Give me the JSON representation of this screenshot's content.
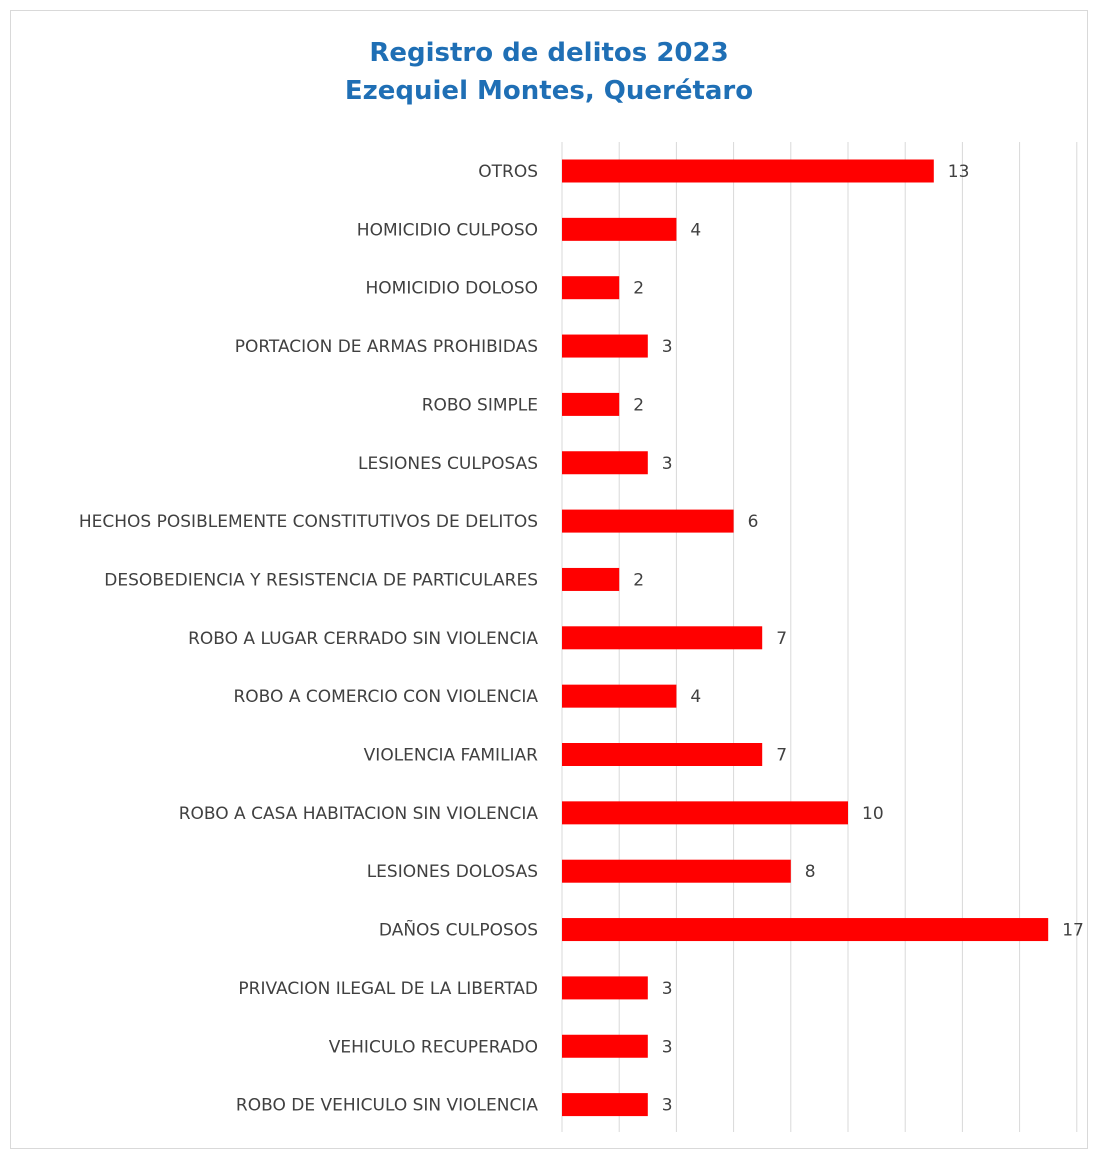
{
  "chart_data": {
    "type": "bar",
    "orientation": "horizontal",
    "title": [
      "Registro de delitos 2023",
      "Ezequiel Montes, Querétaro"
    ],
    "categories": [
      "OTROS",
      "HOMICIDIO CULPOSO",
      "HOMICIDIO DOLOSO",
      "PORTACION DE ARMAS PROHIBIDAS",
      "ROBO SIMPLE",
      "LESIONES CULPOSAS",
      "HECHOS POSIBLEMENTE CONSTITUTIVOS DE DELITOS",
      "DESOBEDIENCIA Y RESISTENCIA DE PARTICULARES",
      "ROBO A LUGAR CERRADO SIN VIOLENCIA",
      "ROBO A COMERCIO CON VIOLENCIA",
      "VIOLENCIA FAMILIAR",
      "ROBO A CASA HABITACION SIN VIOLENCIA",
      "LESIONES DOLOSAS",
      "DAÑOS CULPOSOS",
      "PRIVACION ILEGAL DE LA LIBERTAD",
      "VEHICULO RECUPERADO",
      "ROBO DE VEHICULO SIN VIOLENCIA"
    ],
    "values": [
      13,
      4,
      2,
      3,
      2,
      3,
      6,
      2,
      7,
      4,
      7,
      10,
      8,
      17,
      3,
      3,
      3
    ],
    "xlim": [
      0,
      18
    ],
    "grid": true,
    "legend": "none",
    "bar_color": "#ff0000",
    "title_color": "#1f6fb5"
  }
}
